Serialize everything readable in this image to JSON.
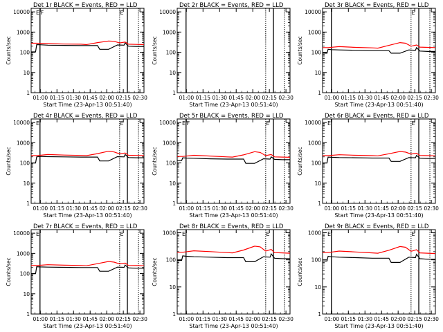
{
  "figure": {
    "xlabel": "Start Time (23-Apr-13 00:51:40)",
    "ylabel": "Counts/sec",
    "x_tick_labels": [
      "01:00",
      "01:15",
      "01:30",
      "01:45",
      "02:00",
      "02:15",
      "02:30"
    ],
    "y_tick_labels": [
      "1",
      "10",
      "100",
      "1000",
      "10000"
    ],
    "colors": {
      "events": "#000000",
      "lld": "#ff0000",
      "axes": "#000000",
      "background": "#ffffff"
    }
  },
  "chart_data": [
    {
      "type": "line",
      "title": "Det 1r BLACK = Events, RED = LLD",
      "xlabel": "Start Time (23-Apr-13 00:51:40)",
      "ylabel": "Counts/sec",
      "x_unit": "minutes after 00:51:40",
      "xlim": [
        0,
        102
      ],
      "ylim": [
        1,
        15000
      ],
      "yscale": "log",
      "markers": {
        "solid": [
          8,
          87
        ],
        "dotted": [
          80,
          97
        ],
        "labels": [
          {
            "x": 6,
            "text": "E"
          },
          {
            "x": 10,
            "text": "F"
          },
          {
            "x": 82,
            "text": "E"
          }
        ]
      },
      "series": [
        {
          "name": "Events",
          "color": "#000000",
          "x": [
            0,
            4,
            5,
            8,
            15,
            30,
            45,
            60,
            62,
            70,
            78,
            84,
            85,
            88,
            95,
            102
          ],
          "y": [
            105,
            105,
            240,
            235,
            225,
            220,
            215,
            215,
            140,
            140,
            230,
            225,
            290,
            200,
            195,
            195
          ]
        },
        {
          "name": "LLD",
          "color": "#ff0000",
          "x": [
            0,
            5,
            15,
            30,
            45,
            50,
            60,
            70,
            75,
            80,
            85,
            88,
            95,
            102
          ],
          "y": [
            280,
            280,
            270,
            255,
            250,
            240,
            300,
            360,
            350,
            290,
            320,
            250,
            245,
            240
          ]
        }
      ]
    },
    {
      "type": "line",
      "title": "Det 2r BLACK = Events, RED = LLD",
      "xlabel": "Start Time (23-Apr-13 00:51:40)",
      "ylabel": "Counts/sec",
      "x_unit": "minutes after 00:51:40",
      "xlim": [
        0,
        102
      ],
      "ylim": [
        1,
        15000
      ],
      "yscale": "log",
      "markers": {
        "solid": [
          8,
          87
        ],
        "dotted": [
          80,
          97
        ],
        "labels": []
      },
      "series": []
    },
    {
      "type": "line",
      "title": "Det 3r BLACK = Events, RED = LLD",
      "xlabel": "Start Time (23-Apr-13 00:51:40)",
      "ylabel": "Counts/sec",
      "x_unit": "minutes after 00:51:40",
      "xlim": [
        0,
        102
      ],
      "ylim": [
        1,
        15000
      ],
      "yscale": "log",
      "markers": {
        "solid": [
          8,
          87
        ],
        "dotted": [
          80,
          97
        ],
        "labels": [
          {
            "x": 82,
            "text": "E"
          }
        ]
      },
      "series": [
        {
          "name": "Events",
          "color": "#000000",
          "x": [
            0,
            4,
            5,
            8,
            15,
            30,
            45,
            60,
            62,
            70,
            78,
            84,
            85,
            88,
            95,
            102
          ],
          "y": [
            90,
            90,
            140,
            135,
            130,
            125,
            120,
            120,
            90,
            90,
            130,
            125,
            170,
            115,
            110,
            110
          ]
        },
        {
          "name": "LLD",
          "color": "#ff0000",
          "x": [
            0,
            5,
            15,
            30,
            45,
            50,
            60,
            70,
            75,
            80,
            85,
            88,
            95,
            102
          ],
          "y": [
            170,
            170,
            190,
            175,
            165,
            160,
            220,
            300,
            280,
            200,
            230,
            180,
            175,
            170
          ]
        }
      ]
    },
    {
      "type": "line",
      "title": "Det 4r BLACK = Events, RED = LLD",
      "xlabel": "Start Time (23-Apr-13 00:51:40)",
      "ylabel": "Counts/sec",
      "x_unit": "minutes after 00:51:40",
      "xlim": [
        0,
        102
      ],
      "ylim": [
        1,
        15000
      ],
      "yscale": "log",
      "markers": {
        "solid": [
          8,
          87
        ],
        "dotted": [
          80,
          97
        ],
        "labels": [
          {
            "x": 6,
            "text": "E"
          },
          {
            "x": 82,
            "text": "E"
          }
        ]
      },
      "series": [
        {
          "name": "Events",
          "color": "#000000",
          "x": [
            0,
            4,
            5,
            8,
            15,
            30,
            45,
            60,
            62,
            70,
            78,
            84,
            85,
            88,
            95,
            102
          ],
          "y": [
            100,
            100,
            200,
            210,
            205,
            200,
            195,
            195,
            125,
            125,
            205,
            200,
            260,
            185,
            180,
            180
          ]
        },
        {
          "name": "LLD",
          "color": "#ff0000",
          "x": [
            0,
            5,
            15,
            30,
            45,
            50,
            60,
            70,
            75,
            80,
            85,
            88,
            95,
            102
          ],
          "y": [
            230,
            230,
            260,
            245,
            235,
            230,
            290,
            380,
            350,
            280,
            310,
            240,
            235,
            230
          ]
        }
      ]
    },
    {
      "type": "line",
      "title": "Det 5r BLACK = Events, RED = LLD",
      "xlabel": "Start Time (23-Apr-13 00:51:40)",
      "ylabel": "Counts/sec",
      "x_unit": "minutes after 00:51:40",
      "xlim": [
        0,
        102
      ],
      "ylim": [
        1,
        15000
      ],
      "yscale": "log",
      "markers": {
        "solid": [
          8,
          87
        ],
        "dotted": [
          80,
          97
        ],
        "labels": [
          {
            "x": 6,
            "text": "E"
          },
          {
            "x": 10,
            "text": "F"
          },
          {
            "x": 82,
            "text": "E"
          }
        ]
      },
      "series": [
        {
          "name": "Events",
          "color": "#000000",
          "x": [
            0,
            4,
            5,
            8,
            15,
            30,
            45,
            60,
            62,
            70,
            78,
            84,
            85,
            88,
            95,
            102
          ],
          "y": [
            130,
            130,
            180,
            175,
            170,
            160,
            155,
            155,
            95,
            95,
            160,
            155,
            200,
            150,
            145,
            145
          ]
        },
        {
          "name": "LLD",
          "color": "#ff0000",
          "x": [
            0,
            5,
            15,
            30,
            45,
            50,
            60,
            70,
            75,
            80,
            85,
            88,
            95,
            102
          ],
          "y": [
            210,
            210,
            240,
            220,
            200,
            195,
            250,
            360,
            330,
            230,
            260,
            200,
            195,
            190
          ]
        }
      ]
    },
    {
      "type": "line",
      "title": "Det 6r BLACK = Events, RED = LLD",
      "xlabel": "Start Time (23-Apr-13 00:51:40)",
      "ylabel": "Counts/sec",
      "x_unit": "minutes after 00:51:40",
      "xlim": [
        0,
        102
      ],
      "ylim": [
        1,
        15000
      ],
      "yscale": "log",
      "markers": {
        "solid": [
          8,
          87
        ],
        "dotted": [
          80,
          97
        ],
        "labels": [
          {
            "x": 6,
            "text": "E"
          },
          {
            "x": 82,
            "text": "E"
          }
        ]
      },
      "series": [
        {
          "name": "Events",
          "color": "#000000",
          "x": [
            0,
            4,
            5,
            8,
            15,
            30,
            45,
            60,
            62,
            70,
            78,
            84,
            85,
            88,
            95,
            102
          ],
          "y": [
            100,
            100,
            195,
            190,
            185,
            180,
            175,
            175,
            120,
            120,
            185,
            180,
            235,
            170,
            165,
            165
          ]
        },
        {
          "name": "LLD",
          "color": "#ff0000",
          "x": [
            0,
            5,
            15,
            30,
            45,
            50,
            60,
            70,
            75,
            80,
            85,
            88,
            95,
            102
          ],
          "y": [
            230,
            230,
            255,
            240,
            230,
            225,
            285,
            370,
            345,
            275,
            300,
            235,
            230,
            225
          ]
        }
      ]
    },
    {
      "type": "line",
      "title": "Det 7r BLACK = Events, RED = LLD",
      "xlabel": "Start Time (23-Apr-13 00:51:40)",
      "ylabel": "Counts/sec",
      "x_unit": "minutes after 00:51:40",
      "xlim": [
        0,
        102
      ],
      "ylim": [
        1,
        15000
      ],
      "yscale": "log",
      "markers": {
        "solid": [
          8,
          87
        ],
        "dotted": [
          80,
          97
        ],
        "labels": [
          {
            "x": 6,
            "text": "E"
          },
          {
            "x": 82,
            "text": "E"
          }
        ]
      },
      "series": [
        {
          "name": "Events",
          "color": "#000000",
          "x": [
            0,
            4,
            5,
            8,
            15,
            30,
            45,
            60,
            62,
            70,
            78,
            84,
            85,
            88,
            95,
            102
          ],
          "y": [
            100,
            100,
            220,
            215,
            210,
            205,
            200,
            200,
            130,
            130,
            210,
            205,
            265,
            190,
            185,
            185
          ]
        },
        {
          "name": "LLD",
          "color": "#ff0000",
          "x": [
            0,
            5,
            15,
            30,
            45,
            50,
            60,
            70,
            75,
            80,
            85,
            88,
            95,
            102
          ],
          "y": [
            250,
            250,
            275,
            260,
            250,
            245,
            310,
            400,
            370,
            300,
            330,
            255,
            250,
            245
          ]
        }
      ]
    },
    {
      "type": "line",
      "title": "Det 8r BLACK = Events, RED = LLD",
      "xlabel": "Start Time (23-Apr-13 00:51:40)",
      "ylabel": "Counts/sec",
      "x_unit": "minutes after 00:51:40",
      "xlim": [
        0,
        102
      ],
      "ylim": [
        1,
        1300
      ],
      "yscale": "log",
      "markers": {
        "solid": [
          8,
          87
        ],
        "dotted": [
          80,
          97
        ],
        "labels": [
          {
            "x": 6,
            "text": "E"
          },
          {
            "x": 82,
            "text": "E"
          }
        ]
      },
      "series": [
        {
          "name": "Events",
          "color": "#000000",
          "x": [
            0,
            4,
            5,
            8,
            15,
            30,
            45,
            60,
            62,
            70,
            78,
            84,
            85,
            88,
            95,
            102
          ],
          "y": [
            95,
            95,
            140,
            135,
            130,
            125,
            120,
            120,
            85,
            85,
            130,
            125,
            165,
            115,
            110,
            110
          ]
        },
        {
          "name": "LLD",
          "color": "#ff0000",
          "x": [
            0,
            5,
            15,
            30,
            45,
            50,
            60,
            70,
            75,
            80,
            85,
            88,
            95,
            102
          ],
          "y": [
            190,
            190,
            215,
            200,
            185,
            180,
            230,
            320,
            300,
            210,
            240,
            185,
            180,
            175
          ]
        }
      ]
    },
    {
      "type": "line",
      "title": "Det 9r BLACK = Events, RED = LLD",
      "xlabel": "Start Time (23-Apr-13 00:51:40)",
      "ylabel": "Counts/sec",
      "x_unit": "minutes after 00:51:40",
      "xlim": [
        0,
        102
      ],
      "ylim": [
        1,
        1300
      ],
      "yscale": "log",
      "markers": {
        "solid": [
          8,
          87
        ],
        "dotted": [
          80,
          97
        ],
        "labels": [
          {
            "x": 6,
            "text": "E"
          },
          {
            "x": 82,
            "text": "E"
          }
        ]
      },
      "series": [
        {
          "name": "Events",
          "color": "#000000",
          "x": [
            0,
            4,
            5,
            8,
            15,
            30,
            45,
            60,
            62,
            70,
            78,
            84,
            85,
            88,
            95,
            102
          ],
          "y": [
            90,
            90,
            135,
            130,
            125,
            120,
            115,
            115,
            80,
            80,
            125,
            120,
            160,
            110,
            105,
            105
          ]
        },
        {
          "name": "LLD",
          "color": "#ff0000",
          "x": [
            0,
            5,
            15,
            30,
            45,
            50,
            60,
            70,
            75,
            80,
            85,
            88,
            95,
            102
          ],
          "y": [
            185,
            185,
            210,
            195,
            180,
            175,
            225,
            310,
            290,
            205,
            235,
            180,
            175,
            170
          ]
        }
      ]
    }
  ]
}
